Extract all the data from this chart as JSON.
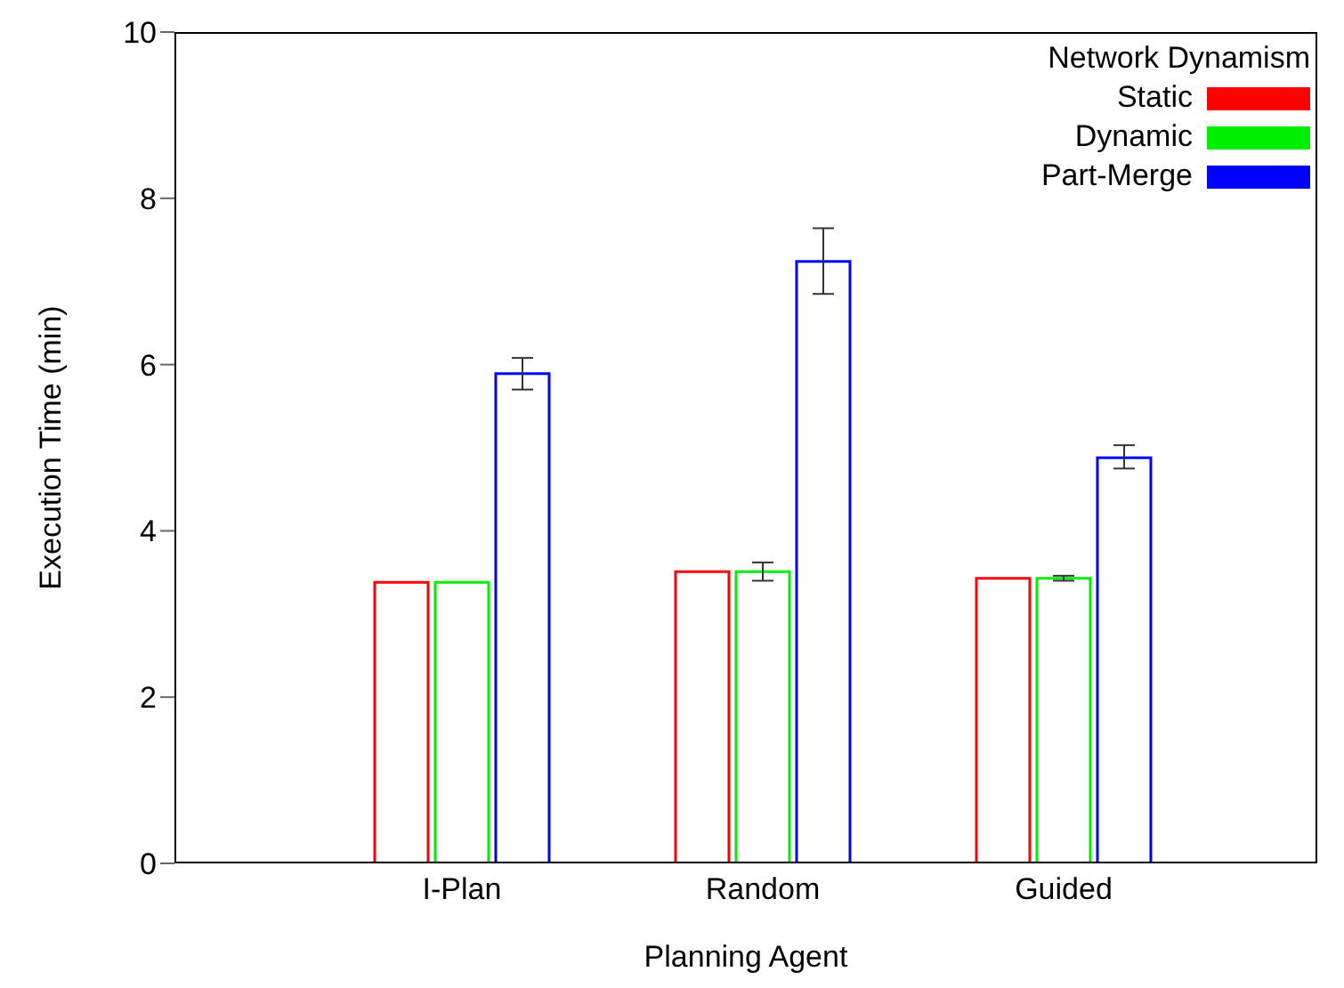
{
  "chart_data": {
    "type": "bar",
    "xlabel": "Planning Agent",
    "ylabel": "Execution Time (min)",
    "legend_title": "Network Dynamism",
    "categories": [
      "I-Plan",
      "Random",
      "Guided"
    ],
    "series": [
      {
        "name": "Static",
        "color": "#ff0000",
        "values": [
          3.38,
          3.51,
          3.43
        ]
      },
      {
        "name": "Dynamic",
        "color": "#00ee00",
        "values": [
          3.38,
          3.51,
          3.43
        ],
        "errors": [
          null,
          [
            3.4,
            3.62
          ],
          [
            3.4,
            3.46
          ]
        ]
      },
      {
        "name": "Part-Merge",
        "color": "#0000ff",
        "values": [
          5.89,
          7.24,
          4.88
        ],
        "errors": [
          [
            5.7,
            6.08
          ],
          [
            6.85,
            7.64
          ],
          [
            4.75,
            5.03
          ]
        ]
      }
    ],
    "ylim": [
      0,
      10
    ],
    "yticks": [
      0,
      2,
      4,
      6,
      8,
      10
    ],
    "grid": false,
    "legend": "top right"
  }
}
